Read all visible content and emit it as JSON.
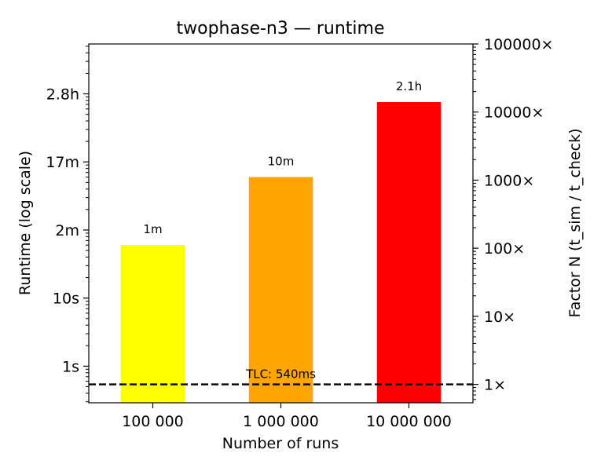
{
  "chart_data": {
    "type": "bar",
    "title": "twophase-n3 — runtime",
    "xlabel": "Number of runs",
    "ylabel": "Runtime (log scale)",
    "y2label": "Factor N (t_sim / t_check)",
    "yscale": "log",
    "y_unit": "seconds",
    "ylim": [
      0.29,
      54000
    ],
    "categories": [
      "100 000",
      "1 000 000",
      "10 000 000"
    ],
    "values": [
      60,
      600,
      7560
    ],
    "bar_labels": [
      "1m",
      "10m",
      "2.1h"
    ],
    "colors": [
      "#ffff00",
      "#ffa500",
      "#ff0000"
    ],
    "y_ticks": [
      {
        "value": 1,
        "label": "1s"
      },
      {
        "value": 10,
        "label": "10s"
      },
      {
        "value": 100,
        "label": "2m"
      },
      {
        "value": 1000,
        "label": "17m"
      },
      {
        "value": 10000,
        "label": "2.8h"
      }
    ],
    "y2_ticks": [
      {
        "value": 1,
        "label": "1×"
      },
      {
        "value": 10,
        "label": "10×"
      },
      {
        "value": 100,
        "label": "100×"
      },
      {
        "value": 1000,
        "label": "1000×"
      },
      {
        "value": 10000,
        "label": "10000×"
      },
      {
        "value": 100000,
        "label": "100000×"
      }
    ],
    "reference_line": {
      "value": 0.54,
      "label": "TLC: 540ms",
      "style": "dashed",
      "color": "#000000"
    },
    "grid": false,
    "legend": "none"
  }
}
